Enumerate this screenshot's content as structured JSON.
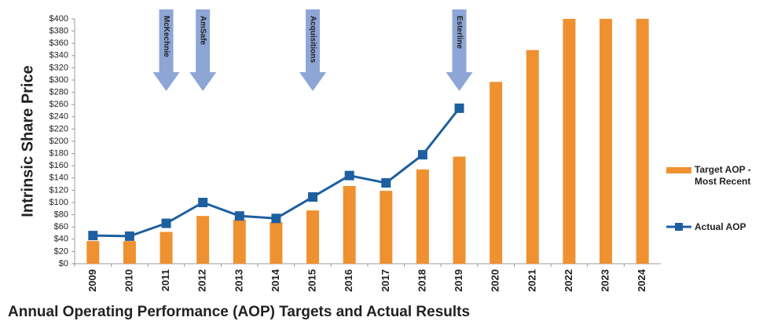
{
  "chart_data": {
    "type": "bar+line",
    "title": "Annual Operating Performance (AOP) Targets and Actual Results",
    "ylabel": "Intrinsic Share Price",
    "categories": [
      "2009",
      "2010",
      "2011",
      "2012",
      "2013",
      "2014",
      "2015",
      "2016",
      "2017",
      "2018",
      "2019",
      "2020",
      "2021",
      "2022",
      "2023",
      "2024"
    ],
    "series": [
      {
        "name": "Target AOP - Most Recent",
        "type": "bar",
        "color": "#ef9130",
        "values": [
          37,
          37,
          52,
          78,
          72,
          68,
          87,
          127,
          119,
          154,
          175,
          297,
          349,
          400,
          400,
          400
        ]
      },
      {
        "name": "Actual AOP",
        "type": "line",
        "color": "#1e5f9f",
        "values": [
          46,
          45,
          66,
          100,
          78,
          74,
          109,
          144,
          132,
          178,
          254,
          null,
          null,
          null,
          null,
          null
        ]
      }
    ],
    "annotations": [
      {
        "text": "McKechnie",
        "x": "2011"
      },
      {
        "text": "AmSafe",
        "x": "2012"
      },
      {
        "text": "Acquisitions",
        "x": "2015"
      },
      {
        "text": "Esterline",
        "x": "2019"
      }
    ],
    "ylim": [
      0,
      400
    ],
    "yticks": [
      {
        "value": 0,
        "label": "$0"
      },
      {
        "value": 20,
        "label": "$20"
      },
      {
        "value": 40,
        "label": "$40"
      },
      {
        "value": 60,
        "label": "$60"
      },
      {
        "value": 80,
        "label": "$80"
      },
      {
        "value": 100,
        "label": "$100"
      },
      {
        "value": 120,
        "label": "$120"
      },
      {
        "value": 140,
        "label": "$140"
      },
      {
        "value": 160,
        "label": "$160"
      },
      {
        "value": 180,
        "label": "$180"
      },
      {
        "value": 200,
        "label": "$200"
      },
      {
        "value": 220,
        "label": "$220"
      },
      {
        "value": 240,
        "label": "$240"
      },
      {
        "value": 260,
        "label": "$260"
      },
      {
        "value": 280,
        "label": "$280"
      },
      {
        "value": 300,
        "label": "$300"
      },
      {
        "value": 320,
        "label": "$320"
      },
      {
        "value": 340,
        "label": "$340"
      },
      {
        "value": 360,
        "label": "$360"
      },
      {
        "value": 380,
        "label": "$380"
      },
      {
        "value": 400,
        "label": "$400"
      }
    ],
    "grid": false,
    "legend": "right",
    "annotation_color": "#8ea6d6"
  }
}
